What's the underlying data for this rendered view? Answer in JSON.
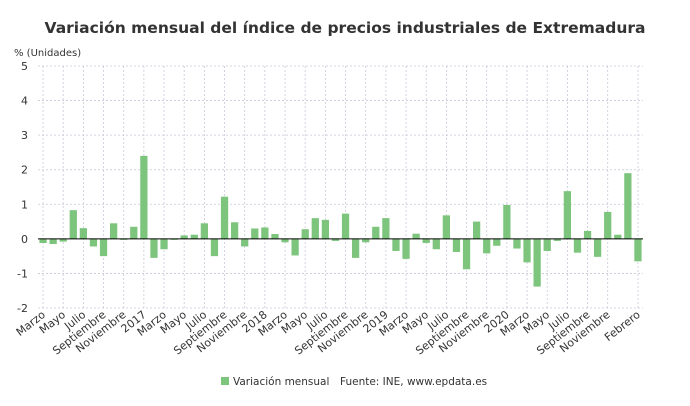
{
  "chart_data": {
    "type": "bar",
    "title": "Variación mensual del índice de precios industriales de Extremadura",
    "ylabel": "% (Unidades)",
    "ylim": [
      -2,
      5
    ],
    "yticks": [
      5,
      4,
      3,
      2,
      1,
      0,
      -1,
      -2
    ],
    "series": [
      {
        "name": "Variación mensual",
        "color": "#7dc57d",
        "values": [
          -0.12,
          -0.15,
          -0.08,
          0.83,
          0.31,
          -0.22,
          -0.5,
          0.45,
          -0.03,
          0.35,
          2.4,
          -0.55,
          -0.3,
          -0.03,
          0.1,
          0.12,
          0.45,
          -0.5,
          1.22,
          0.48,
          -0.22,
          0.3,
          0.33,
          0.14,
          -0.1,
          -0.48,
          0.28,
          0.6,
          0.55,
          -0.06,
          0.73,
          -0.55,
          -0.1,
          0.35,
          0.6,
          -0.35,
          -0.58,
          0.15,
          -0.12,
          -0.3,
          0.68,
          -0.38,
          -0.88,
          0.5,
          -0.42,
          -0.2,
          0.98,
          -0.28,
          -0.68,
          -1.38,
          -0.35,
          -0.06,
          1.38,
          -0.4,
          0.23,
          -0.52,
          0.78,
          0.12,
          1.9,
          -0.65
        ]
      }
    ],
    "category_count": 60,
    "x_tick_labels": [
      {
        "label": "Marzo",
        "index": 0
      },
      {
        "label": "Mayo",
        "index": 2
      },
      {
        "label": "Julio",
        "index": 4
      },
      {
        "label": "Septiembre",
        "index": 6
      },
      {
        "label": "Noviembre",
        "index": 8
      },
      {
        "label": "2017",
        "index": 10
      },
      {
        "label": "Marzo",
        "index": 12
      },
      {
        "label": "Mayo",
        "index": 14
      },
      {
        "label": "Julio",
        "index": 16
      },
      {
        "label": "Septiembre",
        "index": 18
      },
      {
        "label": "Noviembre",
        "index": 20
      },
      {
        "label": "2018",
        "index": 22
      },
      {
        "label": "Marzo",
        "index": 24
      },
      {
        "label": "Mayo",
        "index": 26
      },
      {
        "label": "Julio",
        "index": 28
      },
      {
        "label": "Septiembre",
        "index": 30
      },
      {
        "label": "Noviembre",
        "index": 32
      },
      {
        "label": "2019",
        "index": 34
      },
      {
        "label": "Marzo",
        "index": 36
      },
      {
        "label": "Mayo",
        "index": 38
      },
      {
        "label": "Julio",
        "index": 40
      },
      {
        "label": "Septiembre",
        "index": 42
      },
      {
        "label": "Noviembre",
        "index": 44
      },
      {
        "label": "2020",
        "index": 46
      },
      {
        "label": "Marzo",
        "index": 48
      },
      {
        "label": "Mayo",
        "index": 50
      },
      {
        "label": "Julio",
        "index": 52
      },
      {
        "label": "Septiembre",
        "index": 54
      },
      {
        "label": "Noviembre",
        "index": 56
      },
      {
        "label": "Febrero",
        "index": 59
      }
    ],
    "legend": {
      "label": "Variación mensual",
      "position": "bottom-center"
    },
    "source": "Fuente: INE, www.epdata.es",
    "grid": true,
    "zero_line_color": "#000000",
    "grid_color": "#c8c8d8",
    "text_color": "#333333"
  }
}
